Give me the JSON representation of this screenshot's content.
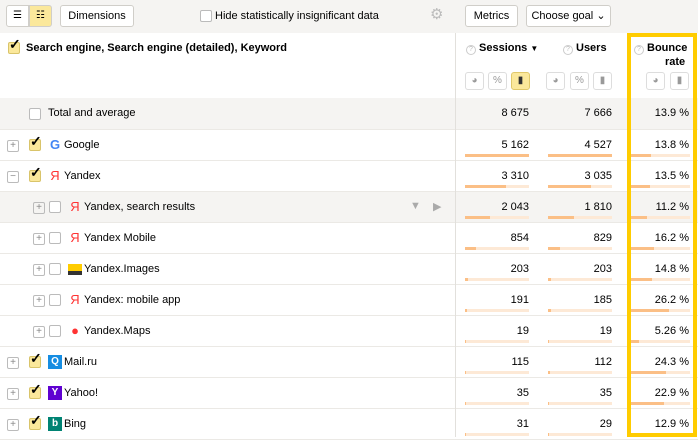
{
  "toolbar": {
    "dimensions_label": "Dimensions",
    "hide_label": "Hide statistically insignificant data",
    "metrics_label": "Metrics",
    "goal_label": "Choose goal"
  },
  "header": {
    "dimension_title": "Search engine, Search engine (detailed), Keyword",
    "sessions": "Sessions",
    "users": "Users",
    "bounce_line1": "Bounce",
    "bounce_line2": "rate",
    "sort_indicator": "▼"
  },
  "total": {
    "label": "Total and average",
    "sessions": "8 675",
    "users": "7 666",
    "bounce": "13.9 %"
  },
  "highlight_color": "#ffcc00",
  "rows": [
    {
      "name": "Google",
      "icon": "google-icon",
      "level": 0,
      "expander": "+",
      "checked": true,
      "sessions": "5 162",
      "users": "4 527",
      "bounce": "13.8 %",
      "s": 5162,
      "u": 4527,
      "b": 13.8
    },
    {
      "name": "Yandex",
      "icon": "yandex-icon",
      "level": 0,
      "expander": "−",
      "checked": true,
      "sessions": "3 310",
      "users": "3 035",
      "bounce": "13.5 %",
      "s": 3310,
      "u": 3035,
      "b": 13.5
    },
    {
      "name": "Yandex, search results",
      "icon": "yandex-icon",
      "level": 1,
      "expander": "+",
      "checked": false,
      "hover": true,
      "sessions": "2 043",
      "users": "1 810",
      "bounce": "11.2 %",
      "s": 2043,
      "u": 1810,
      "b": 11.2
    },
    {
      "name": "Yandex Mobile",
      "icon": "yandex-icon",
      "level": 1,
      "expander": "+",
      "checked": false,
      "sessions": "854",
      "users": "829",
      "bounce": "16.2 %",
      "s": 854,
      "u": 829,
      "b": 16.2
    },
    {
      "name": "Yandex.Images",
      "icon": "yandex-images-icon",
      "level": 1,
      "expander": "+",
      "checked": false,
      "sessions": "203",
      "users": "203",
      "bounce": "14.8 %",
      "s": 203,
      "u": 203,
      "b": 14.8
    },
    {
      "name": "Yandex: mobile app",
      "icon": "yandex-icon",
      "level": 1,
      "expander": "+",
      "checked": false,
      "sessions": "191",
      "users": "185",
      "bounce": "26.2 %",
      "s": 191,
      "u": 185,
      "b": 26.2
    },
    {
      "name": "Yandex.Maps",
      "icon": "yandex-maps-icon",
      "level": 1,
      "expander": "+",
      "checked": false,
      "sessions": "19",
      "users": "19",
      "bounce": "5.26 %",
      "s": 19,
      "u": 19,
      "b": 5.26
    },
    {
      "name": "Mail.ru",
      "icon": "mailru-icon",
      "level": 0,
      "expander": "+",
      "checked": true,
      "sessions": "115",
      "users": "112",
      "bounce": "24.3 %",
      "s": 115,
      "u": 112,
      "b": 24.3
    },
    {
      "name": "Yahoo!",
      "icon": "yahoo-icon",
      "level": 0,
      "expander": "+",
      "checked": true,
      "sessions": "35",
      "users": "35",
      "bounce": "22.9 %",
      "s": 35,
      "u": 35,
      "b": 22.9
    },
    {
      "name": "Bing",
      "icon": "bing-icon",
      "level": 0,
      "expander": "+",
      "checked": true,
      "sessions": "31",
      "users": "29",
      "bounce": "12.9 %",
      "s": 31,
      "u": 29,
      "b": 12.9
    }
  ]
}
